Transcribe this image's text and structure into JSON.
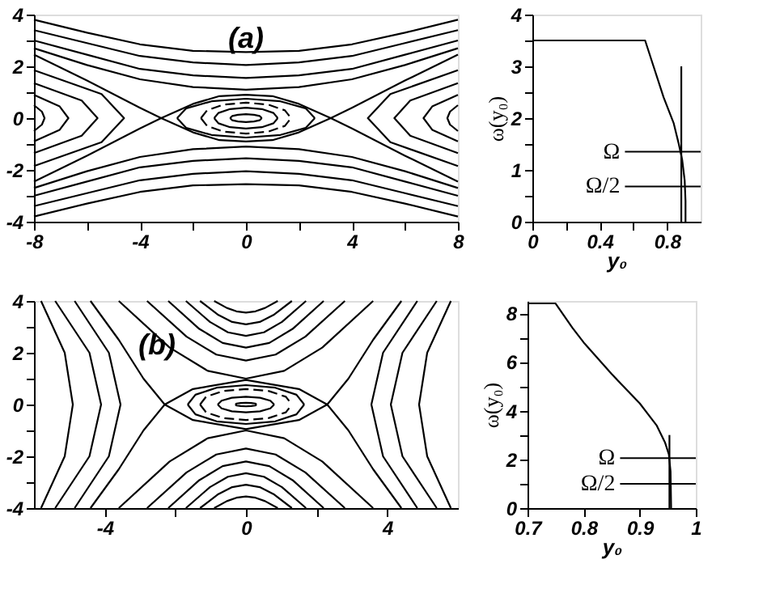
{
  "chart_data": [
    {
      "type": "line",
      "xlim": [
        -8,
        8
      ],
      "ylim": [
        -4,
        4
      ],
      "xticks": [
        -8,
        {
          "value": -6,
          "label": null
        },
        -4,
        {
          "value": -2,
          "label": null
        },
        0,
        {
          "value": 2,
          "label": null
        },
        4,
        {
          "value": 6,
          "label": null
        },
        8
      ],
      "yticks": [
        -4,
        {
          "value": -3,
          "label": null
        },
        -2,
        {
          "value": -1,
          "label": null
        },
        0,
        {
          "value": 1,
          "label": null
        },
        2,
        {
          "value": 3,
          "label": null
        },
        4
      ],
      "grid": false,
      "legend": false,
      "annotations": [
        "(a)"
      ],
      "series": [
        {
          "color": "#000000",
          "x": [
            -8,
            -6,
            -4,
            -3.2,
            -2,
            -1,
            0,
            1,
            2,
            3.2,
            4,
            6,
            8
          ],
          "values": [
            2.45,
            1.45,
            0.4,
            0,
            -0.55,
            -0.85,
            -0.9,
            -0.85,
            -0.55,
            0,
            0.4,
            1.45,
            2.45
          ]
        },
        {
          "color": "#000000",
          "x": [
            -8,
            -6,
            -4,
            -3.2,
            -2,
            -1,
            0,
            1,
            2,
            3.2,
            4,
            6,
            8
          ],
          "values": [
            -2.45,
            -1.45,
            -0.4,
            0,
            0.55,
            0.85,
            0.9,
            0.85,
            0.55,
            0,
            -0.4,
            -1.45,
            -2.45
          ]
        },
        {
          "color": "#000000",
          "x": [
            -8,
            -6,
            -4,
            -2,
            0,
            2,
            4,
            6,
            8
          ],
          "values": [
            3.8,
            3.3,
            2.85,
            2.6,
            2.55,
            2.6,
            2.85,
            3.3,
            3.8
          ]
        },
        {
          "color": "#000000",
          "x": [
            -8,
            -6,
            -4,
            -2,
            0,
            2,
            4,
            6,
            8
          ],
          "values": [
            3.4,
            2.9,
            2.4,
            2.15,
            2.05,
            2.15,
            2.4,
            2.9,
            3.4
          ]
        },
        {
          "color": "#000000",
          "x": [
            -8,
            -6,
            -4,
            -2,
            0,
            2,
            4,
            6,
            8
          ],
          "values": [
            3.0,
            2.45,
            1.9,
            1.65,
            1.55,
            1.65,
            1.9,
            2.45,
            3.0
          ]
        },
        {
          "color": "#000000",
          "x": [
            -8,
            -6,
            -4,
            -2,
            0,
            2,
            4,
            6,
            8
          ],
          "values": [
            2.7,
            2.05,
            1.5,
            1.2,
            1.1,
            1.2,
            1.5,
            2.05,
            2.7
          ]
        },
        {
          "color": "#000000",
          "x": [
            -8,
            -6,
            -4,
            -2,
            0,
            2,
            4,
            6,
            8
          ],
          "values": [
            -3.8,
            -3.3,
            -2.85,
            -2.6,
            -2.55,
            -2.6,
            -2.85,
            -3.3,
            -3.8
          ]
        },
        {
          "color": "#000000",
          "x": [
            -8,
            -6,
            -4,
            -2,
            0,
            2,
            4,
            6,
            8
          ],
          "values": [
            -3.4,
            -2.9,
            -2.4,
            -2.15,
            -2.05,
            -2.15,
            -2.4,
            -2.9,
            -3.4
          ]
        },
        {
          "color": "#000000",
          "x": [
            -8,
            -6,
            -4,
            -2,
            0,
            2,
            4,
            6,
            8
          ],
          "values": [
            -3.0,
            -2.45,
            -1.9,
            -1.65,
            -1.55,
            -1.65,
            -1.9,
            -2.45,
            -3.0
          ]
        },
        {
          "color": "#000000",
          "x": [
            -8,
            -6,
            -4,
            -2,
            0,
            2,
            4,
            6,
            8
          ],
          "values": [
            -2.7,
            -2.05,
            -1.5,
            -1.2,
            -1.1,
            -1.2,
            -1.5,
            -2.05,
            -2.7
          ]
        },
        {
          "color": "#000000",
          "x": [
            -8,
            -5.45,
            -4.6,
            -5.45,
            -8
          ],
          "values": [
            -1.85,
            -0.93,
            0,
            0.93,
            1.85
          ]
        },
        {
          "color": "#000000",
          "x": [
            -8,
            -6.2,
            -5.6,
            -6.2,
            -8
          ],
          "values": [
            -1.35,
            -0.68,
            0,
            0.68,
            1.35
          ]
        },
        {
          "color": "#000000",
          "x": [
            -8,
            -7.03,
            -6.7,
            -7.03,
            -8
          ],
          "values": [
            -0.9,
            -0.45,
            0,
            0.45,
            0.9
          ]
        },
        {
          "color": "#000000",
          "x": [
            -8,
            -7.7,
            -7.6,
            -7.7,
            -8
          ],
          "values": [
            -0.5,
            -0.25,
            0,
            0.25,
            0.5
          ]
        },
        {
          "color": "#000000",
          "x": [
            8,
            5.45,
            4.6,
            5.45,
            8
          ],
          "values": [
            -1.85,
            -0.93,
            0,
            0.93,
            1.85
          ]
        },
        {
          "color": "#000000",
          "x": [
            8,
            6.2,
            5.6,
            6.2,
            8
          ],
          "values": [
            -1.35,
            -0.68,
            0,
            0.68,
            1.35
          ]
        },
        {
          "color": "#000000",
          "x": [
            8,
            7.03,
            6.7,
            7.03,
            8
          ],
          "values": [
            -0.9,
            -0.45,
            0,
            0.45,
            0.9
          ]
        },
        {
          "color": "#000000",
          "x": [
            8,
            7.7,
            7.6,
            7.7,
            8
          ],
          "values": [
            -0.5,
            -0.25,
            0,
            0.25,
            0.5
          ]
        },
        {
          "color": "#000000",
          "x": [
            -2.6,
            -2.25,
            -1.3,
            0,
            1.3,
            2.25,
            2.6
          ],
          "values": [
            0,
            0.38,
            0.65,
            0.75,
            0.65,
            0.38,
            0
          ]
        },
        {
          "color": "#000000",
          "x": [
            -2.6,
            -2.25,
            -1.3,
            0,
            1.3,
            2.25,
            2.6
          ],
          "values": [
            0,
            -0.38,
            -0.65,
            -0.75,
            -0.65,
            -0.38,
            0
          ]
        },
        {
          "color": "#000000",
          "line_style": "dashed",
          "x": [
            -1.7,
            -1.47,
            -0.85,
            0,
            0.85,
            1.47,
            1.7
          ],
          "values": [
            0,
            0.3,
            0.52,
            0.6,
            0.52,
            0.3,
            0
          ]
        },
        {
          "color": "#000000",
          "line_style": "dashed",
          "x": [
            -1.7,
            -1.47,
            -0.85,
            0,
            0.85,
            1.47,
            1.7
          ],
          "values": [
            0,
            -0.3,
            -0.52,
            -0.6,
            -0.52,
            -0.3,
            0
          ]
        },
        {
          "color": "#000000",
          "x": [
            -1.2,
            -1.04,
            -0.6,
            0,
            0.6,
            1.04,
            1.2
          ],
          "values": [
            0,
            0.2,
            0.35,
            0.4,
            0.35,
            0.2,
            0
          ]
        },
        {
          "color": "#000000",
          "x": [
            -1.2,
            -1.04,
            -0.6,
            0,
            0.6,
            1.04,
            1.2
          ],
          "values": [
            0,
            -0.2,
            -0.35,
            -0.4,
            -0.35,
            -0.2,
            0
          ]
        },
        {
          "color": "#000000",
          "x": [
            -0.6,
            -0.52,
            -0.3,
            0,
            0.3,
            0.52,
            0.6
          ],
          "values": [
            0,
            0.08,
            0.13,
            0.15,
            0.13,
            0.08,
            0
          ]
        },
        {
          "color": "#000000",
          "x": [
            -0.6,
            -0.52,
            -0.3,
            0,
            0.3,
            0.52,
            0.6
          ],
          "values": [
            0,
            -0.08,
            -0.13,
            -0.15,
            -0.13,
            -0.08,
            0
          ]
        }
      ]
    },
    {
      "type": "line",
      "xlim": [
        0,
        1
      ],
      "ylim": [
        0,
        4
      ],
      "xlabel": "y₀",
      "ylabel": "ω(y₀)",
      "xticks": [
        0,
        {
          "value": 0.2,
          "label": null
        },
        0.4,
        {
          "value": 0.6,
          "label": null
        },
        0.8
      ],
      "yticks": [
        0,
        {
          "value": 0.5,
          "label": null
        },
        1,
        {
          "value": 1.5,
          "label": null
        },
        2,
        {
          "value": 2.5,
          "label": null
        },
        3,
        {
          "value": 3.5,
          "label": null
        },
        4
      ],
      "grid": false,
      "legend": false,
      "ref_lines": [
        {
          "axis": "y",
          "value": 1.35,
          "label": "Ω"
        },
        {
          "axis": "y",
          "value": 0.68,
          "label": "Ω/2"
        }
      ],
      "series": [
        {
          "color": "#000000",
          "x": [
            0,
            0.67,
            0.72,
            0.78,
            0.84,
            0.87,
            0.89,
            0.905,
            0.91,
            0.91
          ],
          "values": [
            3.5,
            3.5,
            3.0,
            2.4,
            1.9,
            1.5,
            1.2,
            0.8,
            0.4,
            0
          ]
        },
        {
          "color": "#000000",
          "x": [
            0.885,
            0.885
          ],
          "values": [
            0,
            3
          ]
        }
      ]
    },
    {
      "type": "line",
      "xlim": [
        -6,
        6
      ],
      "ylim": [
        -4,
        4
      ],
      "xticks": [
        -4,
        {
          "value": -2,
          "label": null
        },
        0,
        {
          "value": 2,
          "label": null
        },
        4
      ],
      "yticks": [
        -4,
        {
          "value": -3,
          "label": null
        },
        -2,
        {
          "value": -1,
          "label": null
        },
        0,
        {
          "value": 1,
          "label": null
        },
        2,
        {
          "value": 3,
          "label": null
        },
        4
      ],
      "grid": false,
      "legend": false,
      "annotations": [
        "(b)"
      ],
      "series": [
        {
          "color": "#000000",
          "x": [
            -4.4,
            -3.6,
            -2.9,
            -2.3,
            -1.5,
            0,
            1.5,
            2.3,
            2.9,
            3.6,
            4.4
          ],
          "values": [
            4,
            2.5,
            1.0,
            0,
            -0.6,
            -0.95,
            -0.6,
            0,
            1.0,
            2.5,
            4
          ]
        },
        {
          "color": "#000000",
          "x": [
            -4.4,
            -3.6,
            -2.9,
            -2.3,
            -1.5,
            0,
            1.5,
            2.3,
            2.9,
            3.6,
            4.4
          ],
          "values": [
            -4,
            -2.5,
            -1.0,
            0,
            0.6,
            0.95,
            0.6,
            0,
            -1.0,
            -2.5,
            -4
          ]
        },
        {
          "color": "#000000",
          "x": [
            -3.6,
            -2.16,
            -1.08,
            0,
            1.08,
            2.16,
            3.6
          ],
          "values": [
            4,
            2.2,
            1.3,
            1.0,
            1.3,
            2.2,
            4
          ]
        },
        {
          "color": "#000000",
          "x": [
            -2.8,
            -1.68,
            -0.84,
            0,
            0.84,
            1.68,
            2.8
          ],
          "values": [
            4,
            2.62,
            1.93,
            1.7,
            1.93,
            2.62,
            4
          ]
        },
        {
          "color": "#000000",
          "x": [
            -2.2,
            -1.32,
            -0.66,
            0,
            0.66,
            1.32,
            2.2
          ],
          "values": [
            4,
            2.92,
            2.38,
            2.2,
            2.38,
            2.92,
            4
          ]
        },
        {
          "color": "#000000",
          "x": [
            -1.7,
            -1.02,
            -0.51,
            0,
            0.51,
            1.02,
            1.7
          ],
          "values": [
            4,
            3.19,
            2.79,
            2.65,
            2.79,
            3.19,
            4
          ]
        },
        {
          "color": "#000000",
          "x": [
            -1.3,
            -0.78,
            -0.39,
            0,
            0.39,
            0.78,
            1.3
          ],
          "values": [
            4,
            3.46,
            3.19,
            3.1,
            3.19,
            3.46,
            4
          ]
        },
        {
          "color": "#000000",
          "x": [
            -0.9,
            -0.54,
            -0.27,
            0,
            0.27,
            0.54,
            0.9
          ],
          "values": [
            4,
            3.73,
            3.6,
            3.55,
            3.6,
            3.73,
            4
          ]
        },
        {
          "color": "#000000",
          "x": [
            -3.6,
            -2.16,
            -1.08,
            0,
            1.08,
            2.16,
            3.6
          ],
          "values": [
            -4,
            -2.2,
            -1.3,
            -1.0,
            -1.3,
            -2.2,
            -4
          ]
        },
        {
          "color": "#000000",
          "x": [
            -2.8,
            -1.68,
            -0.84,
            0,
            0.84,
            1.68,
            2.8
          ],
          "values": [
            -4,
            -2.62,
            -1.93,
            -1.7,
            -1.93,
            -2.62,
            -4
          ]
        },
        {
          "color": "#000000",
          "x": [
            -2.2,
            -1.32,
            -0.66,
            0,
            0.66,
            1.32,
            2.2
          ],
          "values": [
            -4,
            -2.92,
            -2.38,
            -2.2,
            -2.38,
            -2.92,
            -4
          ]
        },
        {
          "color": "#000000",
          "x": [
            -1.7,
            -1.02,
            -0.51,
            0,
            0.51,
            1.02,
            1.7
          ],
          "values": [
            -4,
            -3.19,
            -2.79,
            -2.65,
            -2.79,
            -3.19,
            -4
          ]
        },
        {
          "color": "#000000",
          "x": [
            -1.3,
            -0.78,
            -0.39,
            0,
            0.39,
            0.78,
            1.3
          ],
          "values": [
            -4,
            -3.46,
            -3.19,
            -3.1,
            -3.19,
            -3.46,
            -4
          ]
        },
        {
          "color": "#000000",
          "x": [
            -0.9,
            -0.54,
            -0.27,
            0,
            0.27,
            0.54,
            0.9
          ],
          "values": [
            -4,
            -3.73,
            -3.6,
            -3.55,
            -3.6,
            -3.73,
            -4
          ]
        },
        {
          "color": "#000000",
          "x": [
            -4.85,
            -3.88,
            -3.55,
            -3.88,
            -4.85
          ],
          "values": [
            -4,
            -2,
            0,
            2,
            4
          ]
        },
        {
          "color": "#000000",
          "x": [
            -5.4,
            -4.43,
            -4.1,
            -4.43,
            -5.4
          ],
          "values": [
            -4,
            -2,
            0,
            2,
            4
          ]
        },
        {
          "color": "#000000",
          "x": [
            -5.8,
            -5.13,
            -4.9,
            -5.13,
            -5.8
          ],
          "values": [
            -4,
            -2,
            0,
            2,
            4
          ]
        },
        {
          "color": "#000000",
          "x": [
            4.85,
            3.88,
            3.55,
            3.88,
            4.85
          ],
          "values": [
            -4,
            -2,
            0,
            2,
            4
          ]
        },
        {
          "color": "#000000",
          "x": [
            5.4,
            4.43,
            4.1,
            4.43,
            5.4
          ],
          "values": [
            -4,
            -2,
            0,
            2,
            4
          ]
        },
        {
          "color": "#000000",
          "x": [
            5.8,
            5.13,
            4.9,
            5.13,
            5.8
          ],
          "values": [
            -4,
            -2,
            0,
            2,
            4
          ]
        },
        {
          "color": "#000000",
          "x": [
            -1.65,
            -1.43,
            -0.83,
            0,
            0.83,
            1.43,
            1.65
          ],
          "values": [
            0,
            0.38,
            0.65,
            0.75,
            0.65,
            0.38,
            0
          ]
        },
        {
          "color": "#000000",
          "x": [
            -1.65,
            -1.43,
            -0.83,
            0,
            0.83,
            1.43,
            1.65
          ],
          "values": [
            0,
            -0.38,
            -0.65,
            -0.75,
            -0.65,
            -0.38,
            0
          ]
        },
        {
          "color": "#000000",
          "line_style": "dashed",
          "x": [
            -1.3,
            -1.13,
            -0.65,
            0,
            0.65,
            1.13,
            1.3
          ],
          "values": [
            0,
            0.3,
            0.52,
            0.6,
            0.52,
            0.3,
            0
          ]
        },
        {
          "color": "#000000",
          "line_style": "dashed",
          "x": [
            -1.3,
            -1.13,
            -0.65,
            0,
            0.65,
            1.13,
            1.3
          ],
          "values": [
            0,
            -0.3,
            -0.52,
            -0.6,
            -0.52,
            -0.3,
            0
          ]
        },
        {
          "color": "#000000",
          "x": [
            -0.8,
            -0.69,
            -0.4,
            0,
            0.4,
            0.69,
            0.8
          ],
          "values": [
            0,
            0.15,
            0.26,
            0.3,
            0.26,
            0.15,
            0
          ]
        },
        {
          "color": "#000000",
          "x": [
            -0.8,
            -0.69,
            -0.4,
            0,
            0.4,
            0.69,
            0.8
          ],
          "values": [
            0,
            -0.15,
            -0.26,
            -0.3,
            -0.26,
            -0.15,
            0
          ]
        },
        {
          "color": "#000000",
          "x": [
            -0.3,
            -0.26,
            -0.15,
            0,
            0.15,
            0.26,
            0.3
          ],
          "values": [
            0,
            0.04,
            0.06,
            0.07,
            0.06,
            0.04,
            0
          ]
        },
        {
          "color": "#000000",
          "x": [
            -0.3,
            -0.26,
            -0.15,
            0,
            0.15,
            0.26,
            0.3
          ],
          "values": [
            0,
            -0.04,
            -0.06,
            -0.07,
            -0.06,
            -0.04,
            0
          ]
        }
      ]
    },
    {
      "type": "line",
      "xlim": [
        0.7,
        1
      ],
      "ylim": [
        0,
        8.5
      ],
      "xlabel": "y₀",
      "ylabel": "ω(y₀)",
      "xticks": [
        0.7,
        0.8,
        0.9,
        1
      ],
      "yticks": [
        0,
        {
          "value": 1,
          "label": null
        },
        2,
        {
          "value": 3,
          "label": null
        },
        4,
        {
          "value": 5,
          "label": null
        },
        6,
        {
          "value": 7,
          "label": null
        },
        8
      ],
      "grid": false,
      "legend": false,
      "ref_lines": [
        {
          "axis": "y",
          "value": 2.05,
          "label": "Ω"
        },
        {
          "axis": "y",
          "value": 1.0,
          "label": "Ω/2"
        }
      ],
      "series": [
        {
          "color": "#000000",
          "x": [
            0.7,
            0.75,
            0.78,
            0.8,
            0.85,
            0.9,
            0.93,
            0.945,
            0.952,
            0.955,
            0.956
          ],
          "values": [
            8.4,
            8.4,
            7.4,
            6.8,
            5.5,
            4.3,
            3.4,
            2.7,
            2.2,
            1.5,
            0
          ]
        },
        {
          "color": "#000000",
          "x": [
            0.953,
            0.953
          ],
          "values": [
            0,
            3
          ]
        }
      ]
    }
  ]
}
